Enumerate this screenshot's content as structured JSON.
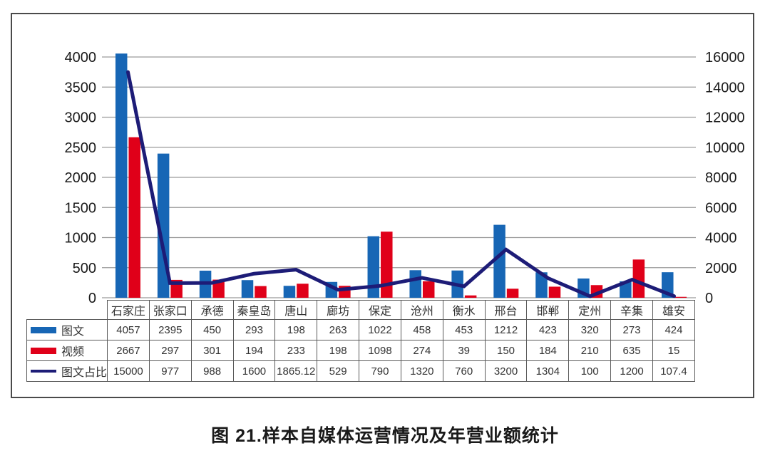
{
  "figure": {
    "caption": "图 21.样本自媒体运营情况及年营业额统计"
  },
  "colors": {
    "bar_blue": "#1766B5",
    "bar_red": "#E00019",
    "line_navy": "#1D1C77",
    "gridline": "#9a9a9a",
    "axis_text": "#1a1a1a",
    "table_border": "#595959",
    "frame_border": "#4a4a4a"
  },
  "chart_data": {
    "type": "bar",
    "subtype": "combo-bar-line-with-data-table",
    "categories": [
      "石家庄",
      "张家口",
      "承德",
      "秦皇岛",
      "唐山",
      "廊坊",
      "保定",
      "沧州",
      "衡水",
      "邢台",
      "邯郸",
      "定州",
      "辛集",
      "雄安"
    ],
    "series": [
      {
        "key": "tuwen",
        "name": "图文",
        "type": "bar",
        "axis": "left",
        "color": "#1766B5",
        "values": [
          4057,
          2395,
          450,
          293,
          198,
          263,
          1022,
          458,
          453,
          1212,
          423,
          320,
          273,
          424
        ]
      },
      {
        "key": "shipin",
        "name": "视频",
        "type": "bar",
        "axis": "left",
        "color": "#E00019",
        "values": [
          2667,
          297,
          301,
          194,
          233,
          198,
          1098,
          274,
          39,
          150,
          184,
          210,
          635,
          15
        ]
      },
      {
        "key": "tuwen-zhanbi",
        "name": "图文占比",
        "type": "line",
        "axis": "right",
        "color": "#1D1C77",
        "values": [
          15000,
          977,
          988,
          1600,
          1865.12,
          529,
          790,
          1320,
          760,
          3200,
          1304,
          100,
          1200,
          107.4
        ]
      }
    ],
    "left_axis": {
      "min": 0,
      "max": 4000,
      "step": 500,
      "ticks": [
        0,
        500,
        1000,
        1500,
        2000,
        2500,
        3000,
        3500,
        4000
      ]
    },
    "right_axis": {
      "min": 0,
      "max": 16000,
      "step": 2000,
      "ticks": [
        0,
        2000,
        4000,
        6000,
        8000,
        10000,
        12000,
        14000,
        16000
      ]
    },
    "grid": true,
    "legend_position": "table-left-key-column",
    "title": "图 21.样本自媒体运营情况及年营业额统计",
    "xlabel": "",
    "ylabel": ""
  }
}
